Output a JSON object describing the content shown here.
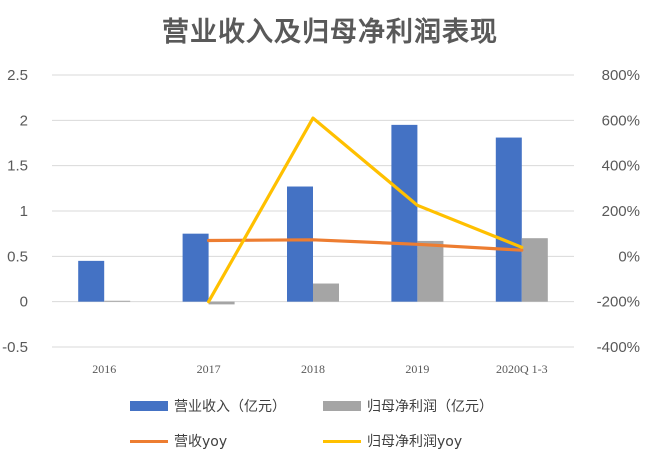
{
  "chart_data": {
    "type": "bar",
    "title": "营业收入及归母净利润表现",
    "categories": [
      "2016",
      "2017",
      "2018",
      "2019",
      "2020Q 1-3"
    ],
    "series": [
      {
        "name": "营业收入（亿元）",
        "type": "bar",
        "axis": "left",
        "color": "#4472C4",
        "values": [
          0.45,
          0.75,
          1.27,
          1.95,
          1.81
        ]
      },
      {
        "name": "归母净利润（亿元）",
        "type": "bar",
        "axis": "left",
        "color": "#A5A5A5",
        "values": [
          0.01,
          -0.03,
          0.2,
          0.67,
          0.7
        ]
      },
      {
        "name": "营收yoy",
        "type": "line",
        "axis": "right",
        "color": "#ED7D31",
        "values": [
          null,
          70,
          73,
          53,
          27
        ]
      },
      {
        "name": "归母净利润yoy",
        "type": "line",
        "axis": "right",
        "color": "#FFC000",
        "values": [
          null,
          -200,
          610,
          225,
          40
        ]
      }
    ],
    "y_left": {
      "ylim": [
        -0.5,
        2.5
      ],
      "ticks": [
        "-0.5",
        "0",
        "0.5",
        "1",
        "1.5",
        "2",
        "2.5"
      ]
    },
    "y_right": {
      "ylim": [
        -400,
        800
      ],
      "unit": "%",
      "ticks": [
        "-400%",
        "-200%",
        "0%",
        "200%",
        "400%",
        "600%",
        "800%"
      ]
    },
    "grid": true,
    "legend_position": "bottom"
  }
}
